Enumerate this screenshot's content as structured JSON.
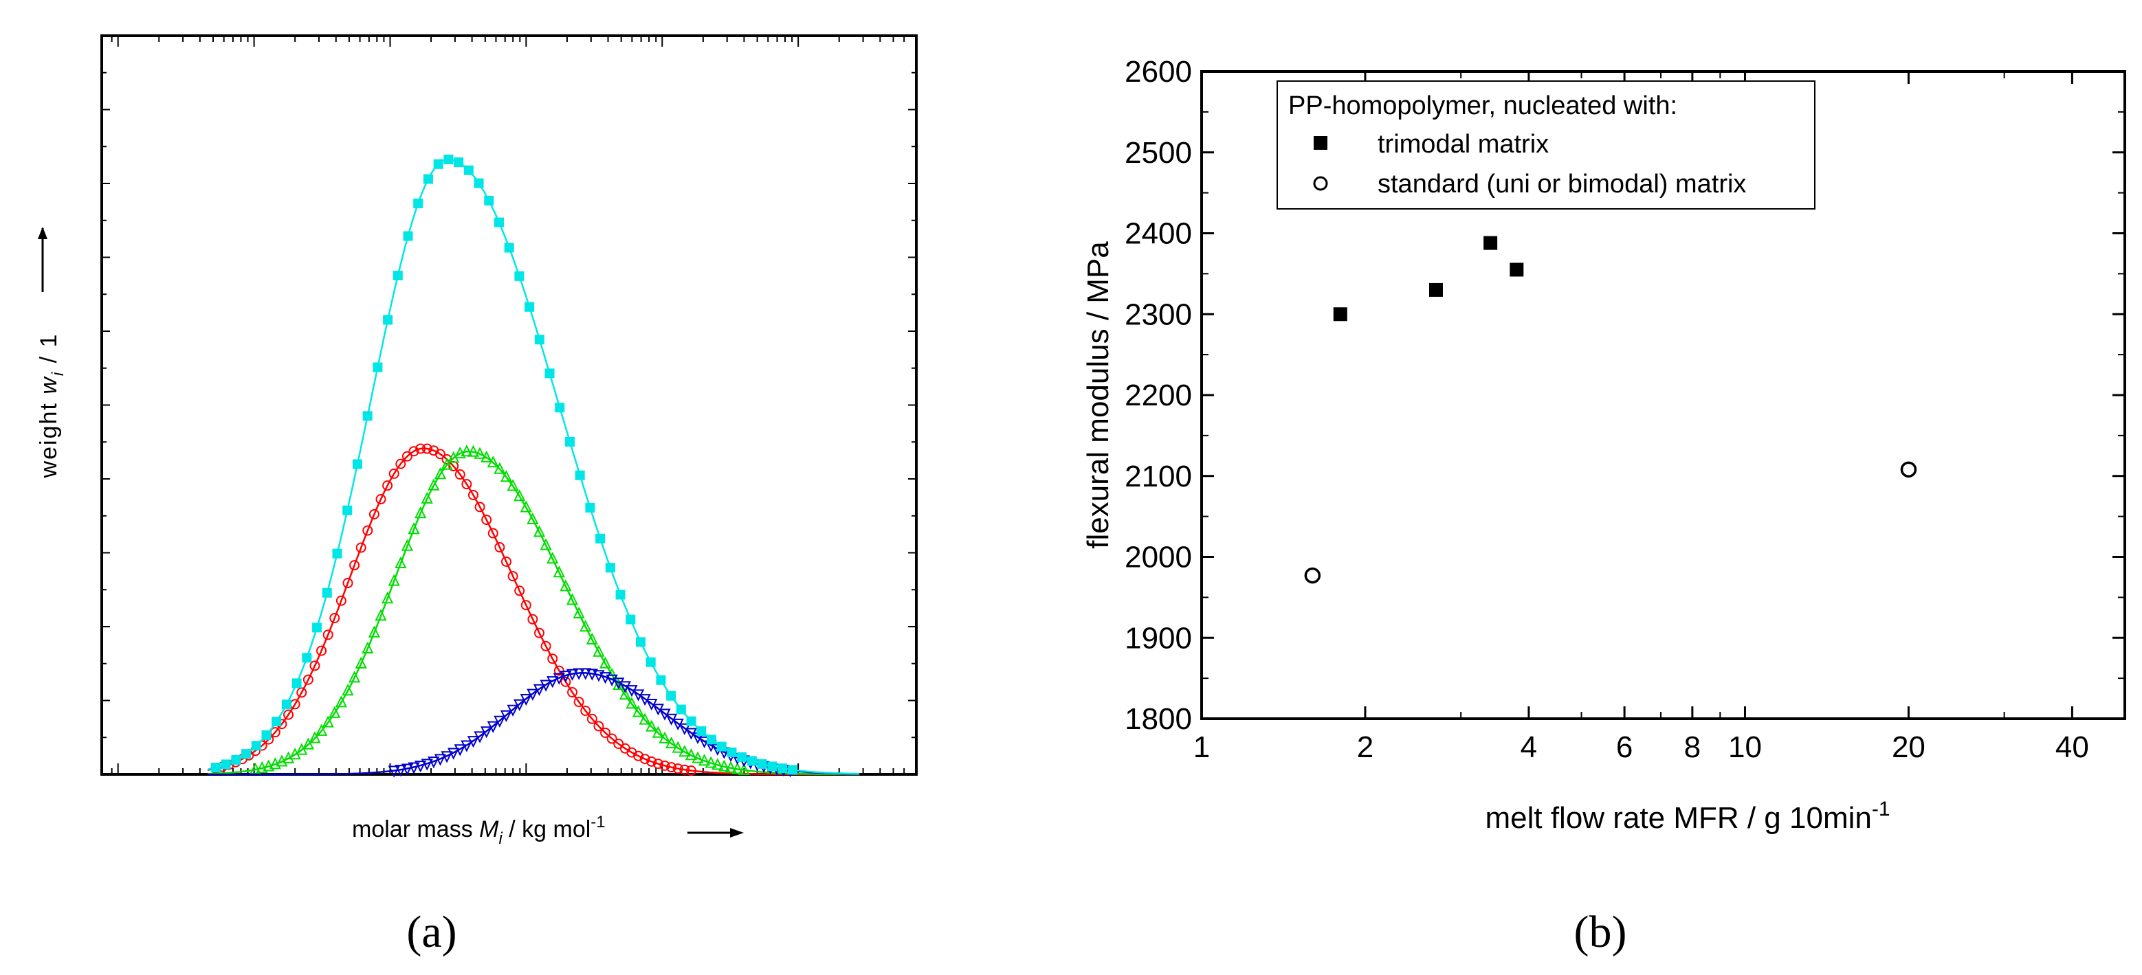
{
  "panel_a": {
    "caption": "(a)",
    "xlabel": {
      "pre": "molar mass ",
      "sym": "M",
      "sub": "i",
      "post": " / kg mol",
      "sup": "-1"
    },
    "ylabel": {
      "pre": "weight ",
      "sym": "w",
      "sub": "i",
      "post": " / 1"
    },
    "colors": {
      "red": "#ff0000",
      "green": "#00dd00",
      "blue": "#0000cc",
      "cyan": "#00e6e6"
    }
  },
  "panel_b": {
    "caption": "(b)",
    "xlabel": {
      "pre": "melt flow rate MFR / g 10min",
      "sup": "-1"
    },
    "ylabel": "flexural modulus / MPa",
    "legend": {
      "title": "PP-homopolymer, nucleated with:",
      "items": [
        "trimodal matrix",
        "standard (uni or bimodal) matrix"
      ]
    }
  },
  "chart_data": [
    {
      "type": "line",
      "title": "",
      "xlabel": "molar mass Mi / kg mol-1",
      "ylabel": "weight wi / 1",
      "x_scale": "log (no tick labels shown)",
      "xlim": [
        0,
        1
      ],
      "ylim": [
        0,
        1
      ],
      "legend": null,
      "series": [
        {
          "name": "red",
          "marker": "open circle",
          "color": "#ff0000",
          "peak_x": 0.395,
          "peak_y": 0.53,
          "width_left": 0.09,
          "width_right": 0.11
        },
        {
          "name": "green",
          "marker": "open triangle",
          "color": "#00dd00",
          "peak_x": 0.45,
          "peak_y": 0.525,
          "width_left": 0.09,
          "width_right": 0.115
        },
        {
          "name": "blue",
          "marker": "open inverted triangle",
          "color": "#0000cc",
          "peak_x": 0.59,
          "peak_y": 0.165,
          "width_left": 0.09,
          "width_right": 0.1
        },
        {
          "name": "cyan",
          "marker": "filled square",
          "color": "#00e6e6",
          "peak_x": 0.425,
          "peak_y": 1.0,
          "width_left": 0.095,
          "width_right": 0.135
        }
      ]
    },
    {
      "type": "scatter",
      "title": "",
      "xlabel": "melt flow rate MFR / g 10min-1",
      "ylabel": "flexural modulus / MPa",
      "x_scale": "log",
      "xlim": [
        1,
        50
      ],
      "ylim": [
        1800,
        2600
      ],
      "xticks": [
        1,
        2,
        4,
        6,
        8,
        10,
        20,
        40
      ],
      "yticks": [
        1800,
        1900,
        2000,
        2100,
        2200,
        2300,
        2400,
        2500,
        2600
      ],
      "legend": "top-left",
      "series": [
        {
          "name": "trimodal matrix",
          "marker": "filled square",
          "x": [
            1.8,
            2.7,
            3.4,
            3.8
          ],
          "y": [
            2300,
            2330,
            2388,
            2355
          ]
        },
        {
          "name": "standard (uni or bimodal) matrix",
          "marker": "open circle",
          "x": [
            1.6,
            20
          ],
          "y": [
            1977,
            2108
          ]
        }
      ]
    }
  ]
}
